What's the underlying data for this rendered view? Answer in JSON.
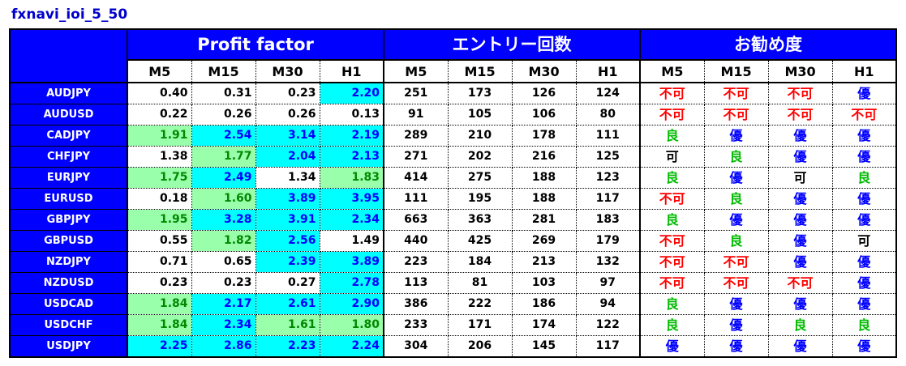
{
  "title": "fxnavi_ioi_5_50",
  "groups": {
    "profit_factor": "Profit factor",
    "entries": "エントリー回数",
    "recommend": "お勧め度"
  },
  "timeframes": [
    "M5",
    "M15",
    "M30",
    "H1"
  ],
  "colors": {
    "header_blue": "#0000ff",
    "pf_high_bg": "#00ffff",
    "pf_mid_bg": "#99ffaa",
    "rec_ng": "#ff0000",
    "rec_good": "#00bb00",
    "rec_best": "#0000ff"
  },
  "rows": [
    {
      "pair": "AUDJPY",
      "pf": [
        "0.40",
        "0.31",
        "0.23",
        "2.20"
      ],
      "entries": [
        "251",
        "173",
        "126",
        "124"
      ],
      "rec": [
        "不可",
        "不可",
        "不可",
        "優"
      ]
    },
    {
      "pair": "AUDUSD",
      "pf": [
        "0.22",
        "0.26",
        "0.26",
        "0.13"
      ],
      "entries": [
        "91",
        "105",
        "106",
        "80"
      ],
      "rec": [
        "不可",
        "不可",
        "不可",
        "不可"
      ]
    },
    {
      "pair": "CADJPY",
      "pf": [
        "1.91",
        "2.54",
        "3.14",
        "2.19"
      ],
      "entries": [
        "289",
        "210",
        "178",
        "111"
      ],
      "rec": [
        "良",
        "優",
        "優",
        "優"
      ]
    },
    {
      "pair": "CHFJPY",
      "pf": [
        "1.38",
        "1.77",
        "2.04",
        "2.13"
      ],
      "entries": [
        "271",
        "202",
        "216",
        "125"
      ],
      "rec": [
        "可",
        "良",
        "優",
        "優"
      ]
    },
    {
      "pair": "EURJPY",
      "pf": [
        "1.75",
        "2.49",
        "1.34",
        "1.83"
      ],
      "entries": [
        "414",
        "275",
        "188",
        "123"
      ],
      "rec": [
        "良",
        "優",
        "可",
        "良"
      ]
    },
    {
      "pair": "EURUSD",
      "pf": [
        "0.18",
        "1.60",
        "3.89",
        "3.95"
      ],
      "entries": [
        "111",
        "195",
        "188",
        "117"
      ],
      "rec": [
        "不可",
        "良",
        "優",
        "優"
      ]
    },
    {
      "pair": "GBPJPY",
      "pf": [
        "1.95",
        "3.28",
        "3.91",
        "2.34"
      ],
      "entries": [
        "663",
        "363",
        "281",
        "183"
      ],
      "rec": [
        "良",
        "優",
        "優",
        "優"
      ]
    },
    {
      "pair": "GBPUSD",
      "pf": [
        "0.55",
        "1.82",
        "2.56",
        "1.49"
      ],
      "entries": [
        "440",
        "425",
        "269",
        "179"
      ],
      "rec": [
        "不可",
        "良",
        "優",
        "可"
      ]
    },
    {
      "pair": "NZDJPY",
      "pf": [
        "0.71",
        "0.65",
        "2.39",
        "3.89"
      ],
      "entries": [
        "223",
        "184",
        "213",
        "132"
      ],
      "rec": [
        "不可",
        "不可",
        "優",
        "優"
      ]
    },
    {
      "pair": "NZDUSD",
      "pf": [
        "0.23",
        "0.23",
        "0.27",
        "2.78"
      ],
      "entries": [
        "113",
        "81",
        "103",
        "97"
      ],
      "rec": [
        "不可",
        "不可",
        "不可",
        "優"
      ]
    },
    {
      "pair": "USDCAD",
      "pf": [
        "1.84",
        "2.17",
        "2.61",
        "2.90"
      ],
      "entries": [
        "386",
        "222",
        "186",
        "94"
      ],
      "rec": [
        "良",
        "優",
        "優",
        "優"
      ]
    },
    {
      "pair": "USDCHF",
      "pf": [
        "1.84",
        "2.34",
        "1.61",
        "1.80"
      ],
      "entries": [
        "233",
        "171",
        "174",
        "122"
      ],
      "rec": [
        "良",
        "優",
        "良",
        "良"
      ]
    },
    {
      "pair": "USDJPY",
      "pf": [
        "2.25",
        "2.86",
        "2.23",
        "2.24"
      ],
      "entries": [
        "304",
        "206",
        "145",
        "117"
      ],
      "rec": [
        "優",
        "優",
        "優",
        "優"
      ]
    }
  ]
}
